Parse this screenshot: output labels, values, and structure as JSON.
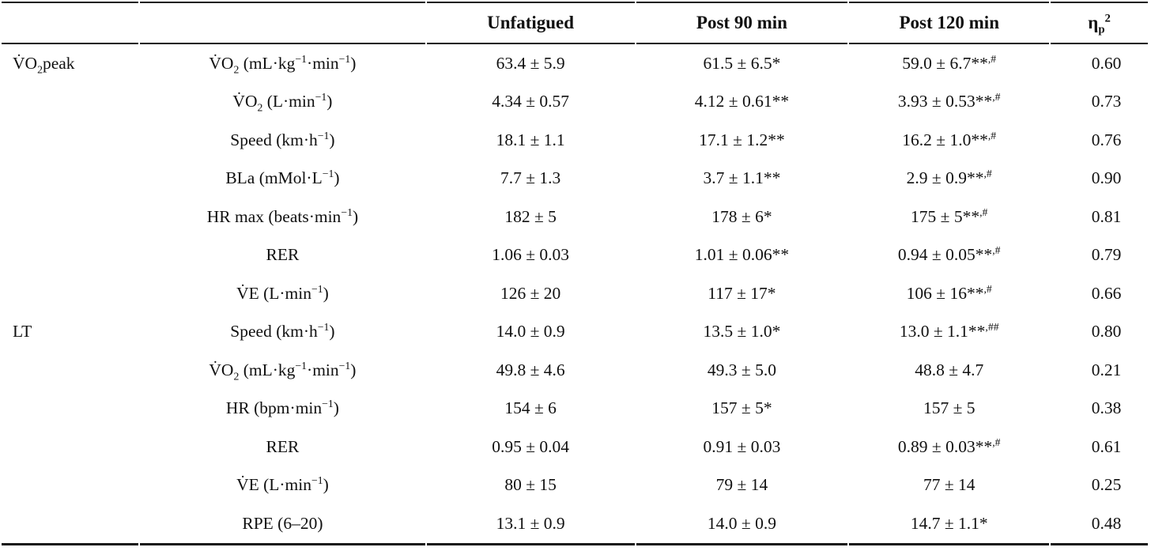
{
  "table": {
    "columns": [
      {
        "key": "group",
        "label": ""
      },
      {
        "key": "param",
        "label": ""
      },
      {
        "key": "unfatigued",
        "label": "Unfatigued"
      },
      {
        "key": "post90",
        "label": "Post 90 min"
      },
      {
        "key": "post120",
        "label": "Post 120 min"
      },
      {
        "key": "eta",
        "label": "η_{p}^{2}"
      }
    ],
    "rows": [
      {
        "group": "V̇O_{2}peak",
        "param": "V̇O_{2} (mL·kg^{−1}·min^{−1})",
        "unfatigued": "63.4 ± 5.9",
        "post90": "61.5 ± 6.5*",
        "post120": "59.0 ± 6.7**^{,#}",
        "eta": "0.60"
      },
      {
        "group": "",
        "param": "V̇O_{2} (L·min^{−1})",
        "unfatigued": "4.34 ± 0.57",
        "post90": "4.12 ± 0.61**",
        "post120": "3.93 ± 0.53**^{,#}",
        "eta": "0.73"
      },
      {
        "group": "",
        "param": "Speed (km·h^{−1})",
        "unfatigued": "18.1 ± 1.1",
        "post90": "17.1 ± 1.2**",
        "post120": "16.2 ± 1.0**^{,#}",
        "eta": "0.76"
      },
      {
        "group": "",
        "param": "BLa (mMol·L^{−1})",
        "unfatigued": "7.7 ± 1.3",
        "post90": "3.7 ± 1.1**",
        "post120": "2.9 ± 0.9**^{,#}",
        "eta": "0.90"
      },
      {
        "group": "",
        "param": "HR max (beats·min^{−1})",
        "unfatigued": "182 ± 5",
        "post90": "178 ± 6*",
        "post120": "175 ± 5**^{,#}",
        "eta": "0.81"
      },
      {
        "group": "",
        "param": "RER",
        "unfatigued": "1.06 ± 0.03",
        "post90": "1.01 ± 0.06**",
        "post120": "0.94 ± 0.05**^{,#}",
        "eta": "0.79"
      },
      {
        "group": "",
        "param": "V̇E (L·min^{−1})",
        "unfatigued": "126 ± 20",
        "post90": "117 ± 17*",
        "post120": "106 ± 16**^{,#}",
        "eta": "0.66"
      },
      {
        "group": "LT",
        "param": "Speed (km·h^{−1})",
        "unfatigued": "14.0 ± 0.9",
        "post90": "13.5 ± 1.0*",
        "post120": "13.0 ± 1.1**^{,##}",
        "eta": "0.80"
      },
      {
        "group": "",
        "param": "V̇O_{2} (mL·kg^{−1}·min^{−1})",
        "unfatigued": "49.8 ± 4.6",
        "post90": "49.3 ± 5.0",
        "post120": "48.8 ± 4.7",
        "eta": "0.21"
      },
      {
        "group": "",
        "param": "HR (bpm·min^{−1})",
        "unfatigued": "154 ± 6",
        "post90": "157 ± 5*",
        "post120": "157 ± 5",
        "eta": "0.38"
      },
      {
        "group": "",
        "param": "RER",
        "unfatigued": "0.95 ± 0.04",
        "post90": "0.91 ± 0.03",
        "post120": "0.89 ± 0.03**^{,#}",
        "eta": "0.61"
      },
      {
        "group": "",
        "param": "V̇E (L·min^{−1})",
        "unfatigued": "80 ± 15",
        "post90": "79 ± 14",
        "post120": "77 ± 14",
        "eta": "0.25"
      },
      {
        "group": "",
        "param": "RPE (6–20)",
        "unfatigued": "13.1 ± 0.9",
        "post90": "14.0 ± 0.9",
        "post120": "14.7 ± 1.1*",
        "eta": "0.48"
      }
    ]
  }
}
